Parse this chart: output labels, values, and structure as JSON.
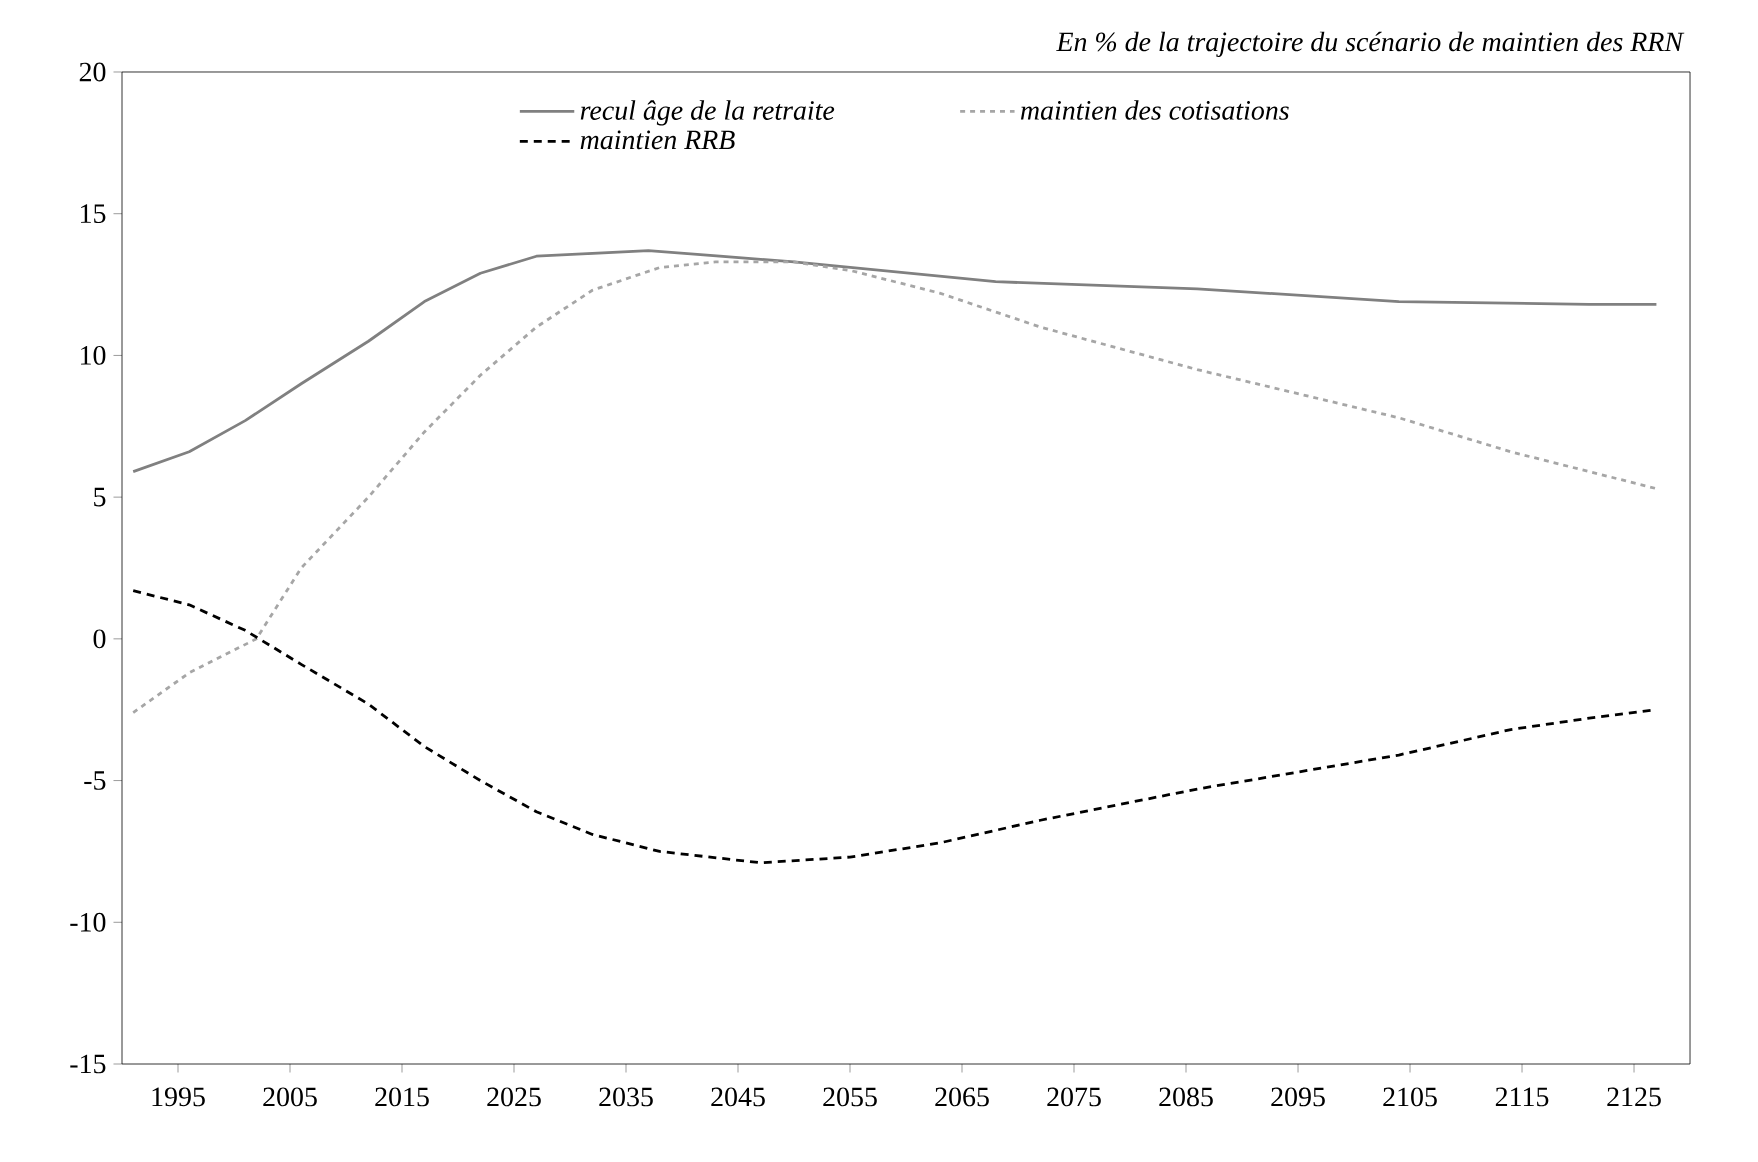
{
  "chart_data": {
    "type": "line",
    "title": "En % de la trajectoire du scénario de maintien des RRN",
    "xlim": [
      1990,
      2130
    ],
    "xticks": [
      1995,
      2005,
      2015,
      2025,
      2035,
      2045,
      2055,
      2065,
      2075,
      2085,
      2095,
      2105,
      2115,
      2125
    ],
    "ylim": [
      -15,
      20
    ],
    "yticks": [
      -15,
      -10,
      -5,
      0,
      5,
      10,
      15,
      20
    ],
    "grid": false,
    "legend": "top",
    "marker": "none",
    "series": [
      {
        "name": "recul âge de la retraite",
        "color": "#808080",
        "line_style": "solid",
        "x": [
          1991,
          1996,
          2001,
          2006,
          2012,
          2017,
          2022,
          2027,
          2037,
          2050,
          2068,
          2086,
          2104,
          2121,
          2127
        ],
        "values": [
          5.9,
          6.6,
          7.7,
          9.0,
          10.5,
          11.9,
          12.9,
          13.5,
          13.7,
          13.3,
          12.6,
          12.35,
          11.9,
          11.8,
          11.8
        ]
      },
      {
        "name": "maintien des cotisations",
        "color": "#a6a6a6",
        "line_style": "dotted",
        "x": [
          1991,
          1996,
          2002,
          2006,
          2012,
          2017,
          2022,
          2027,
          2032,
          2038,
          2043,
          2050,
          2055,
          2063,
          2072,
          2086,
          2104,
          2114,
          2121,
          2127
        ],
        "values": [
          -2.6,
          -1.2,
          0.0,
          2.5,
          5.0,
          7.3,
          9.3,
          11.0,
          12.3,
          13.1,
          13.3,
          13.3,
          13.0,
          12.2,
          11.0,
          9.5,
          7.8,
          6.6,
          5.9,
          5.3
        ]
      },
      {
        "name": "maintien RRB",
        "color": "#000000",
        "line_style": "dashed",
        "x": [
          1991,
          1996,
          2001,
          2006,
          2012,
          2017,
          2022,
          2027,
          2032,
          2038,
          2047,
          2055,
          2063,
          2072,
          2086,
          2104,
          2114,
          2121,
          2127
        ],
        "values": [
          1.7,
          1.2,
          0.3,
          -0.9,
          -2.3,
          -3.8,
          -5.0,
          -6.1,
          -6.9,
          -7.5,
          -7.9,
          -7.7,
          -7.2,
          -6.4,
          -5.3,
          -4.1,
          -3.2,
          -2.8,
          -2.5
        ]
      }
    ]
  }
}
